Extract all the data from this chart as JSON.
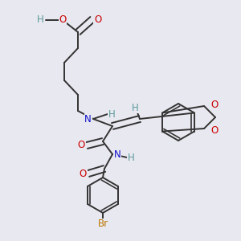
{
  "bg_color": "#e8e8f0",
  "bond_color": "#333333",
  "bond_width": 1.4,
  "atom_colors": {
    "C": "#333333",
    "H": "#5a9a9a",
    "O": "#cc0000",
    "N": "#1111cc",
    "Br": "#bb7700"
  },
  "font_size": 8.5
}
